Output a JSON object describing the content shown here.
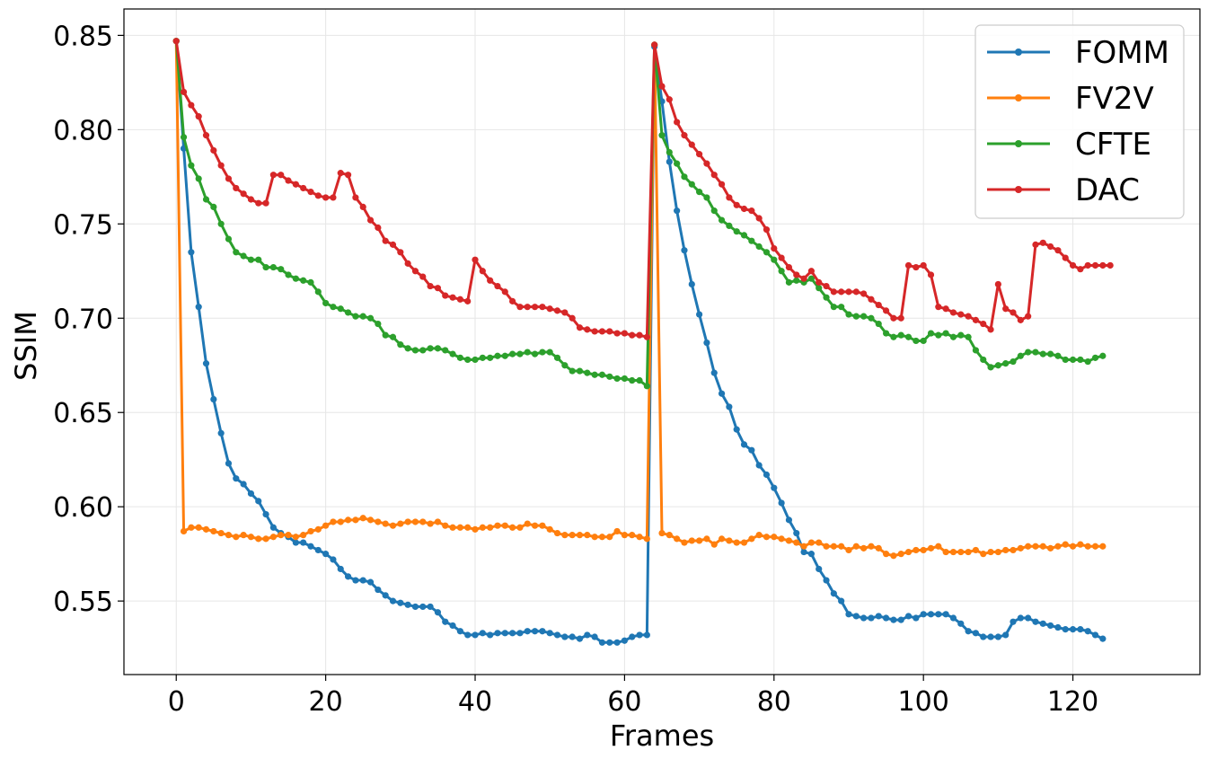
{
  "chart_data": {
    "type": "line",
    "title": "",
    "xlabel": "Frames",
    "ylabel": "SSIM",
    "xlim": [
      -7,
      137
    ],
    "ylim": [
      0.511,
      0.864
    ],
    "xticks": [
      0,
      20,
      40,
      60,
      80,
      100,
      120
    ],
    "xtick_labels": [
      "0",
      "20",
      "40",
      "60",
      "80",
      "100",
      "120"
    ],
    "yticks": [
      0.55,
      0.6,
      0.65,
      0.7,
      0.75,
      0.8,
      0.85
    ],
    "ytick_labels": [
      "0.55",
      "0.60",
      "0.65",
      "0.70",
      "0.75",
      "0.80",
      "0.85"
    ],
    "grid": true,
    "legend_position": "top-right",
    "x_start": 0,
    "series": [
      {
        "name": "FOMM",
        "color": "#1f77b4",
        "values": [
          0.847,
          0.79,
          0.735,
          0.706,
          0.676,
          0.657,
          0.639,
          0.623,
          0.615,
          0.612,
          0.607,
          0.603,
          0.596,
          0.589,
          0.586,
          0.584,
          0.581,
          0.581,
          0.579,
          0.577,
          0.575,
          0.572,
          0.567,
          0.563,
          0.561,
          0.561,
          0.56,
          0.556,
          0.553,
          0.55,
          0.549,
          0.548,
          0.547,
          0.547,
          0.547,
          0.544,
          0.539,
          0.537,
          0.534,
          0.532,
          0.532,
          0.533,
          0.532,
          0.533,
          0.533,
          0.533,
          0.533,
          0.534,
          0.534,
          0.534,
          0.533,
          0.532,
          0.531,
          0.531,
          0.53,
          0.532,
          0.531,
          0.528,
          0.528,
          0.528,
          0.529,
          0.531,
          0.532,
          0.532,
          0.844,
          0.815,
          0.783,
          0.757,
          0.736,
          0.718,
          0.702,
          0.687,
          0.671,
          0.66,
          0.653,
          0.641,
          0.633,
          0.63,
          0.622,
          0.617,
          0.61,
          0.602,
          0.593,
          0.586,
          0.576,
          0.575,
          0.567,
          0.561,
          0.554,
          0.55,
          0.543,
          0.542,
          0.541,
          0.541,
          0.542,
          0.541,
          0.54,
          0.54,
          0.542,
          0.541,
          0.543,
          0.543,
          0.543,
          0.543,
          0.541,
          0.538,
          0.534,
          0.533,
          0.531,
          0.531,
          0.531,
          0.532,
          0.539,
          0.541,
          0.541,
          0.539,
          0.538,
          0.537,
          0.536,
          0.535,
          0.535,
          0.535,
          0.534,
          0.532,
          0.53
        ]
      },
      {
        "name": "FV2V",
        "color": "#ff7f0e",
        "values": [
          0.847,
          0.587,
          0.589,
          0.589,
          0.588,
          0.587,
          0.586,
          0.585,
          0.584,
          0.585,
          0.584,
          0.583,
          0.583,
          0.584,
          0.585,
          0.585,
          0.584,
          0.585,
          0.587,
          0.588,
          0.59,
          0.592,
          0.592,
          0.593,
          0.593,
          0.594,
          0.593,
          0.592,
          0.591,
          0.59,
          0.591,
          0.592,
          0.592,
          0.592,
          0.591,
          0.592,
          0.59,
          0.589,
          0.589,
          0.589,
          0.588,
          0.589,
          0.589,
          0.59,
          0.59,
          0.589,
          0.589,
          0.591,
          0.59,
          0.59,
          0.588,
          0.586,
          0.585,
          0.585,
          0.585,
          0.585,
          0.584,
          0.584,
          0.584,
          0.587,
          0.585,
          0.585,
          0.584,
          0.583,
          0.845,
          0.586,
          0.585,
          0.583,
          0.581,
          0.582,
          0.582,
          0.583,
          0.58,
          0.583,
          0.582,
          0.581,
          0.581,
          0.583,
          0.585,
          0.584,
          0.584,
          0.583,
          0.582,
          0.581,
          0.579,
          0.581,
          0.581,
          0.579,
          0.579,
          0.579,
          0.577,
          0.579,
          0.578,
          0.579,
          0.578,
          0.575,
          0.574,
          0.575,
          0.576,
          0.577,
          0.577,
          0.578,
          0.579,
          0.576,
          0.576,
          0.576,
          0.576,
          0.577,
          0.575,
          0.576,
          0.576,
          0.577,
          0.577,
          0.578,
          0.579,
          0.579,
          0.579,
          0.578,
          0.579,
          0.58,
          0.579,
          0.58,
          0.579,
          0.579,
          0.579
        ]
      },
      {
        "name": "CFTE",
        "color": "#2ca02c",
        "values": [
          0.847,
          0.796,
          0.781,
          0.774,
          0.763,
          0.759,
          0.75,
          0.742,
          0.735,
          0.733,
          0.731,
          0.731,
          0.727,
          0.727,
          0.726,
          0.723,
          0.721,
          0.72,
          0.719,
          0.714,
          0.708,
          0.706,
          0.705,
          0.703,
          0.701,
          0.701,
          0.7,
          0.697,
          0.691,
          0.69,
          0.686,
          0.684,
          0.683,
          0.683,
          0.684,
          0.684,
          0.683,
          0.681,
          0.679,
          0.678,
          0.678,
          0.679,
          0.679,
          0.68,
          0.68,
          0.681,
          0.681,
          0.682,
          0.681,
          0.682,
          0.682,
          0.679,
          0.675,
          0.672,
          0.672,
          0.671,
          0.67,
          0.67,
          0.669,
          0.668,
          0.668,
          0.667,
          0.667,
          0.664,
          0.845,
          0.797,
          0.788,
          0.782,
          0.775,
          0.771,
          0.767,
          0.764,
          0.757,
          0.752,
          0.749,
          0.746,
          0.744,
          0.741,
          0.738,
          0.735,
          0.731,
          0.725,
          0.719,
          0.72,
          0.719,
          0.721,
          0.716,
          0.711,
          0.706,
          0.706,
          0.702,
          0.701,
          0.701,
          0.7,
          0.697,
          0.692,
          0.69,
          0.691,
          0.69,
          0.688,
          0.688,
          0.692,
          0.691,
          0.692,
          0.69,
          0.691,
          0.69,
          0.683,
          0.678,
          0.674,
          0.675,
          0.676,
          0.677,
          0.68,
          0.682,
          0.682,
          0.681,
          0.681,
          0.68,
          0.678,
          0.678,
          0.678,
          0.677,
          0.679,
          0.68
        ]
      },
      {
        "name": "DAC",
        "color": "#d62728",
        "values": [
          0.847,
          0.82,
          0.813,
          0.807,
          0.797,
          0.789,
          0.781,
          0.774,
          0.769,
          0.766,
          0.763,
          0.761,
          0.761,
          0.776,
          0.776,
          0.773,
          0.771,
          0.769,
          0.767,
          0.765,
          0.764,
          0.764,
          0.777,
          0.776,
          0.764,
          0.759,
          0.752,
          0.748,
          0.741,
          0.739,
          0.735,
          0.729,
          0.725,
          0.722,
          0.717,
          0.716,
          0.712,
          0.711,
          0.71,
          0.709,
          0.731,
          0.725,
          0.72,
          0.717,
          0.714,
          0.709,
          0.706,
          0.706,
          0.706,
          0.706,
          0.705,
          0.704,
          0.703,
          0.7,
          0.695,
          0.694,
          0.693,
          0.693,
          0.693,
          0.692,
          0.692,
          0.691,
          0.691,
          0.69,
          0.845,
          0.823,
          0.816,
          0.804,
          0.797,
          0.792,
          0.787,
          0.782,
          0.776,
          0.771,
          0.764,
          0.76,
          0.758,
          0.757,
          0.753,
          0.747,
          0.737,
          0.732,
          0.727,
          0.723,
          0.721,
          0.725,
          0.719,
          0.717,
          0.714,
          0.714,
          0.714,
          0.714,
          0.713,
          0.71,
          0.707,
          0.704,
          0.7,
          0.7,
          0.728,
          0.727,
          0.728,
          0.723,
          0.706,
          0.705,
          0.703,
          0.702,
          0.701,
          0.699,
          0.697,
          0.694,
          0.718,
          0.705,
          0.703,
          0.699,
          0.701,
          0.739,
          0.74,
          0.738,
          0.736,
          0.732,
          0.728,
          0.726,
          0.728,
          0.728,
          0.728,
          0.728
        ]
      }
    ]
  }
}
